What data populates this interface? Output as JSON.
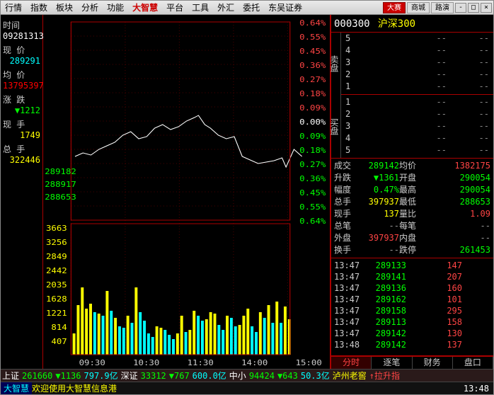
{
  "menu": {
    "items": [
      "行情",
      "指数",
      "板块",
      "分析",
      "功能",
      "大智慧",
      "平台",
      "工具",
      "外汇",
      "委托",
      "东吴证券"
    ],
    "red_index": 5,
    "toolbar": [
      {
        "label": "大赛",
        "cls": ""
      },
      {
        "label": "商城",
        "cls": "b"
      },
      {
        "label": "路演",
        "cls": "b"
      }
    ]
  },
  "left": {
    "time_lbl": "时间",
    "time_val": "09281313",
    "price_lbl": "现 价",
    "price_val": "289291",
    "avg_lbl": "均 价",
    "avg_val": "13795397",
    "chg_lbl": "涨 跌",
    "chg_val": "1212",
    "chg_dir": "▼",
    "vol_lbl": "现 手",
    "vol_val": "1749",
    "tot_lbl": "总 手",
    "tot_val": "322446"
  },
  "chart": {
    "y1_labels": [
      "289182",
      "288917",
      "288653"
    ],
    "y2_labels": [
      "3663",
      "3256",
      "2849",
      "2442",
      "2035",
      "1628",
      "1221",
      "814",
      "407"
    ],
    "x_labels": [
      "09:30",
      "10:30",
      "11:30",
      "14:00",
      "15:00"
    ],
    "pct_labels": [
      "0.64%",
      "0.55%",
      "0.45%",
      "0.36%",
      "0.27%",
      "0.18%",
      "0.09%",
      "0.00%",
      "0.09%",
      "0.18%",
      "0.27%",
      "0.36%",
      "0.45%",
      "0.55%",
      "0.64%"
    ],
    "pct_mid_index": 7,
    "line_path": "M5,200 15,195 25,198 35,190 45,185 55,180 65,170 75,165 85,175 95,172 105,160 115,155 125,162 135,158 145,150 155,145 160,142 168,155 175,160 185,170 195,175 205,172 215,200 225,205 235,210 245,208 255,206 265,202 270,215 280,190 290,200",
    "vol_bars": [
      30,
      70,
      95,
      65,
      72,
      60,
      58,
      55,
      90,
      62,
      52,
      40,
      38,
      55,
      45,
      95,
      60,
      48,
      30,
      25,
      40,
      38,
      35,
      28,
      22,
      30,
      55,
      32,
      35,
      62,
      55,
      48,
      50,
      60,
      58,
      42,
      35,
      55,
      52,
      40,
      42,
      55,
      65,
      40,
      32,
      60,
      52,
      70,
      45,
      75,
      45,
      68,
      50
    ],
    "vol_colors": [
      "#ff0",
      "#ff0",
      "#ff0",
      "#ff0",
      "#ff0",
      "#0ff",
      "#ff0",
      "#0ff",
      "#ff0",
      "#0ff",
      "#ff0",
      "#0ff",
      "#0ff",
      "#ff0",
      "#0ff",
      "#ff0",
      "#0ff",
      "#0ff",
      "#0ff",
      "#0ff",
      "#ff0",
      "#ff0",
      "#0ff",
      "#0ff",
      "#0ff",
      "#ff0",
      "#ff0",
      "#0ff",
      "#ff0",
      "#ff0",
      "#0ff",
      "#0ff",
      "#ff0",
      "#ff0",
      "#ff0",
      "#0ff",
      "#0ff",
      "#ff0",
      "#0ff",
      "#0ff",
      "#ff0",
      "#ff0",
      "#ff0",
      "#0ff",
      "#0ff",
      "#ff0",
      "#0ff",
      "#ff0",
      "#0ff",
      "#ff0",
      "#0ff",
      "#ff0",
      "#ff0"
    ]
  },
  "right": {
    "code": "000300",
    "name": "沪深300",
    "ask_lbl": "卖盘",
    "bid_lbl": "买盘",
    "asks": [
      {
        "n": "5",
        "p": "--",
        "v": "--"
      },
      {
        "n": "4",
        "p": "--",
        "v": "--"
      },
      {
        "n": "3",
        "p": "--",
        "v": "--"
      },
      {
        "n": "2",
        "p": "--",
        "v": "--"
      },
      {
        "n": "1",
        "p": "--",
        "v": "--"
      }
    ],
    "bids": [
      {
        "n": "1",
        "p": "--",
        "v": "--"
      },
      {
        "n": "2",
        "p": "--",
        "v": "--"
      },
      {
        "n": "3",
        "p": "--",
        "v": "--"
      },
      {
        "n": "4",
        "p": "--",
        "v": "--"
      },
      {
        "n": "5",
        "p": "--",
        "v": "--"
      }
    ],
    "stats": [
      {
        "l": "成交",
        "v": "289142",
        "c": "c-green",
        "l2": "均价",
        "v2": "1382175",
        "c2": "c-red"
      },
      {
        "l": "升跌",
        "v": "▼1361",
        "c": "c-green",
        "l2": "开盘",
        "v2": "290054",
        "c2": "c-green"
      },
      {
        "l": "幅度",
        "v": "0.47%",
        "c": "c-green",
        "l2": "最高",
        "v2": "290054",
        "c2": "c-green"
      },
      {
        "l": "总手",
        "v": "397937",
        "c": "c-yellow",
        "l2": "最低",
        "v2": "288653",
        "c2": "c-green"
      },
      {
        "l": "现手",
        "v": "137",
        "c": "c-yellow",
        "l2": "量比",
        "v2": "1.09",
        "c2": "c-red"
      },
      {
        "l": "总笔",
        "v": "--",
        "c": "c-gray",
        "l2": "每笔",
        "v2": "--",
        "c2": "c-gray"
      },
      {
        "l": "外盘",
        "v": "397937",
        "c": "c-red",
        "l2": "内盘",
        "v2": "--",
        "c2": "c-gray"
      },
      {
        "l": "换手",
        "v": "--",
        "c": "c-gray",
        "l2": "跌停",
        "v2": "261453",
        "c2": "c-green"
      }
    ],
    "ticks": [
      {
        "t": "13:47",
        "p": "289133",
        "v": "147",
        "c": "c-red"
      },
      {
        "t": "13:47",
        "p": "289141",
        "v": "207",
        "c": "c-red"
      },
      {
        "t": "13:47",
        "p": "289136",
        "v": "160",
        "c": "c-red"
      },
      {
        "t": "13:47",
        "p": "289162",
        "v": "101",
        "c": "c-red"
      },
      {
        "t": "13:47",
        "p": "289158",
        "v": "295",
        "c": "c-red"
      },
      {
        "t": "13:47",
        "p": "289113",
        "v": "158",
        "c": "c-red"
      },
      {
        "t": "13:47",
        "p": "289142",
        "v": "130",
        "c": "c-red"
      },
      {
        "t": "13:48",
        "p": "289142",
        "v": "137",
        "c": "c-red"
      }
    ],
    "tabs": [
      "分时",
      "逐笔",
      "财务",
      "盘口"
    ],
    "tab_active": 0
  },
  "status": {
    "s1": [
      {
        "t": "上证",
        "c": "c-white"
      },
      {
        "t": "261660",
        "c": "c-green"
      },
      {
        "t": "▼1136",
        "c": "c-green"
      },
      {
        "t": "797.9亿",
        "c": "c-cyan"
      },
      {
        "t": "深证",
        "c": "c-white"
      },
      {
        "t": "33312",
        "c": "c-green"
      },
      {
        "t": "▼767",
        "c": "c-green"
      },
      {
        "t": "600.0亿",
        "c": "c-cyan"
      },
      {
        "t": "中小",
        "c": "c-white"
      },
      {
        "t": "94424",
        "c": "c-green"
      },
      {
        "t": "▼643",
        "c": "c-green"
      },
      {
        "t": "50.3亿",
        "c": "c-cyan"
      },
      {
        "t": "泸州老窖",
        "c": "c-yellow"
      },
      {
        "t": "↑拉升指",
        "c": "c-red"
      }
    ],
    "s2_app": "大智慧",
    "s2_msg": "欢迎使用大智慧信息港",
    "s2_time": "13:48"
  }
}
